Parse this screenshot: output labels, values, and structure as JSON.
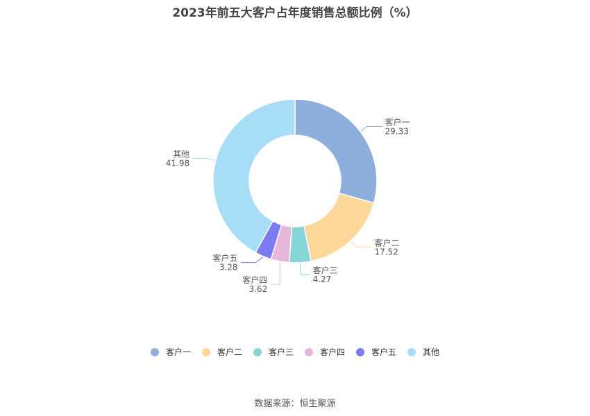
{
  "chart_data": {
    "type": "pie",
    "title": "2023年前五大客户占年度销售总额比例（%）",
    "categories": [
      "客户一",
      "客户二",
      "客户三",
      "客户四",
      "客户五",
      "其他"
    ],
    "values": [
      29.33,
      17.52,
      4.27,
      3.62,
      3.28,
      41.98
    ],
    "value_labels": [
      "29.33",
      "17.52",
      "4.27",
      "3.62",
      "3.28",
      "41.98"
    ],
    "colors": [
      "#8eaedb",
      "#fed89b",
      "#86d6d8",
      "#e6b8db",
      "#7b7cf2",
      "#a8ddf8"
    ],
    "legend_position": "bottom",
    "donut": true
  },
  "source": "数据来源：恒生聚源"
}
